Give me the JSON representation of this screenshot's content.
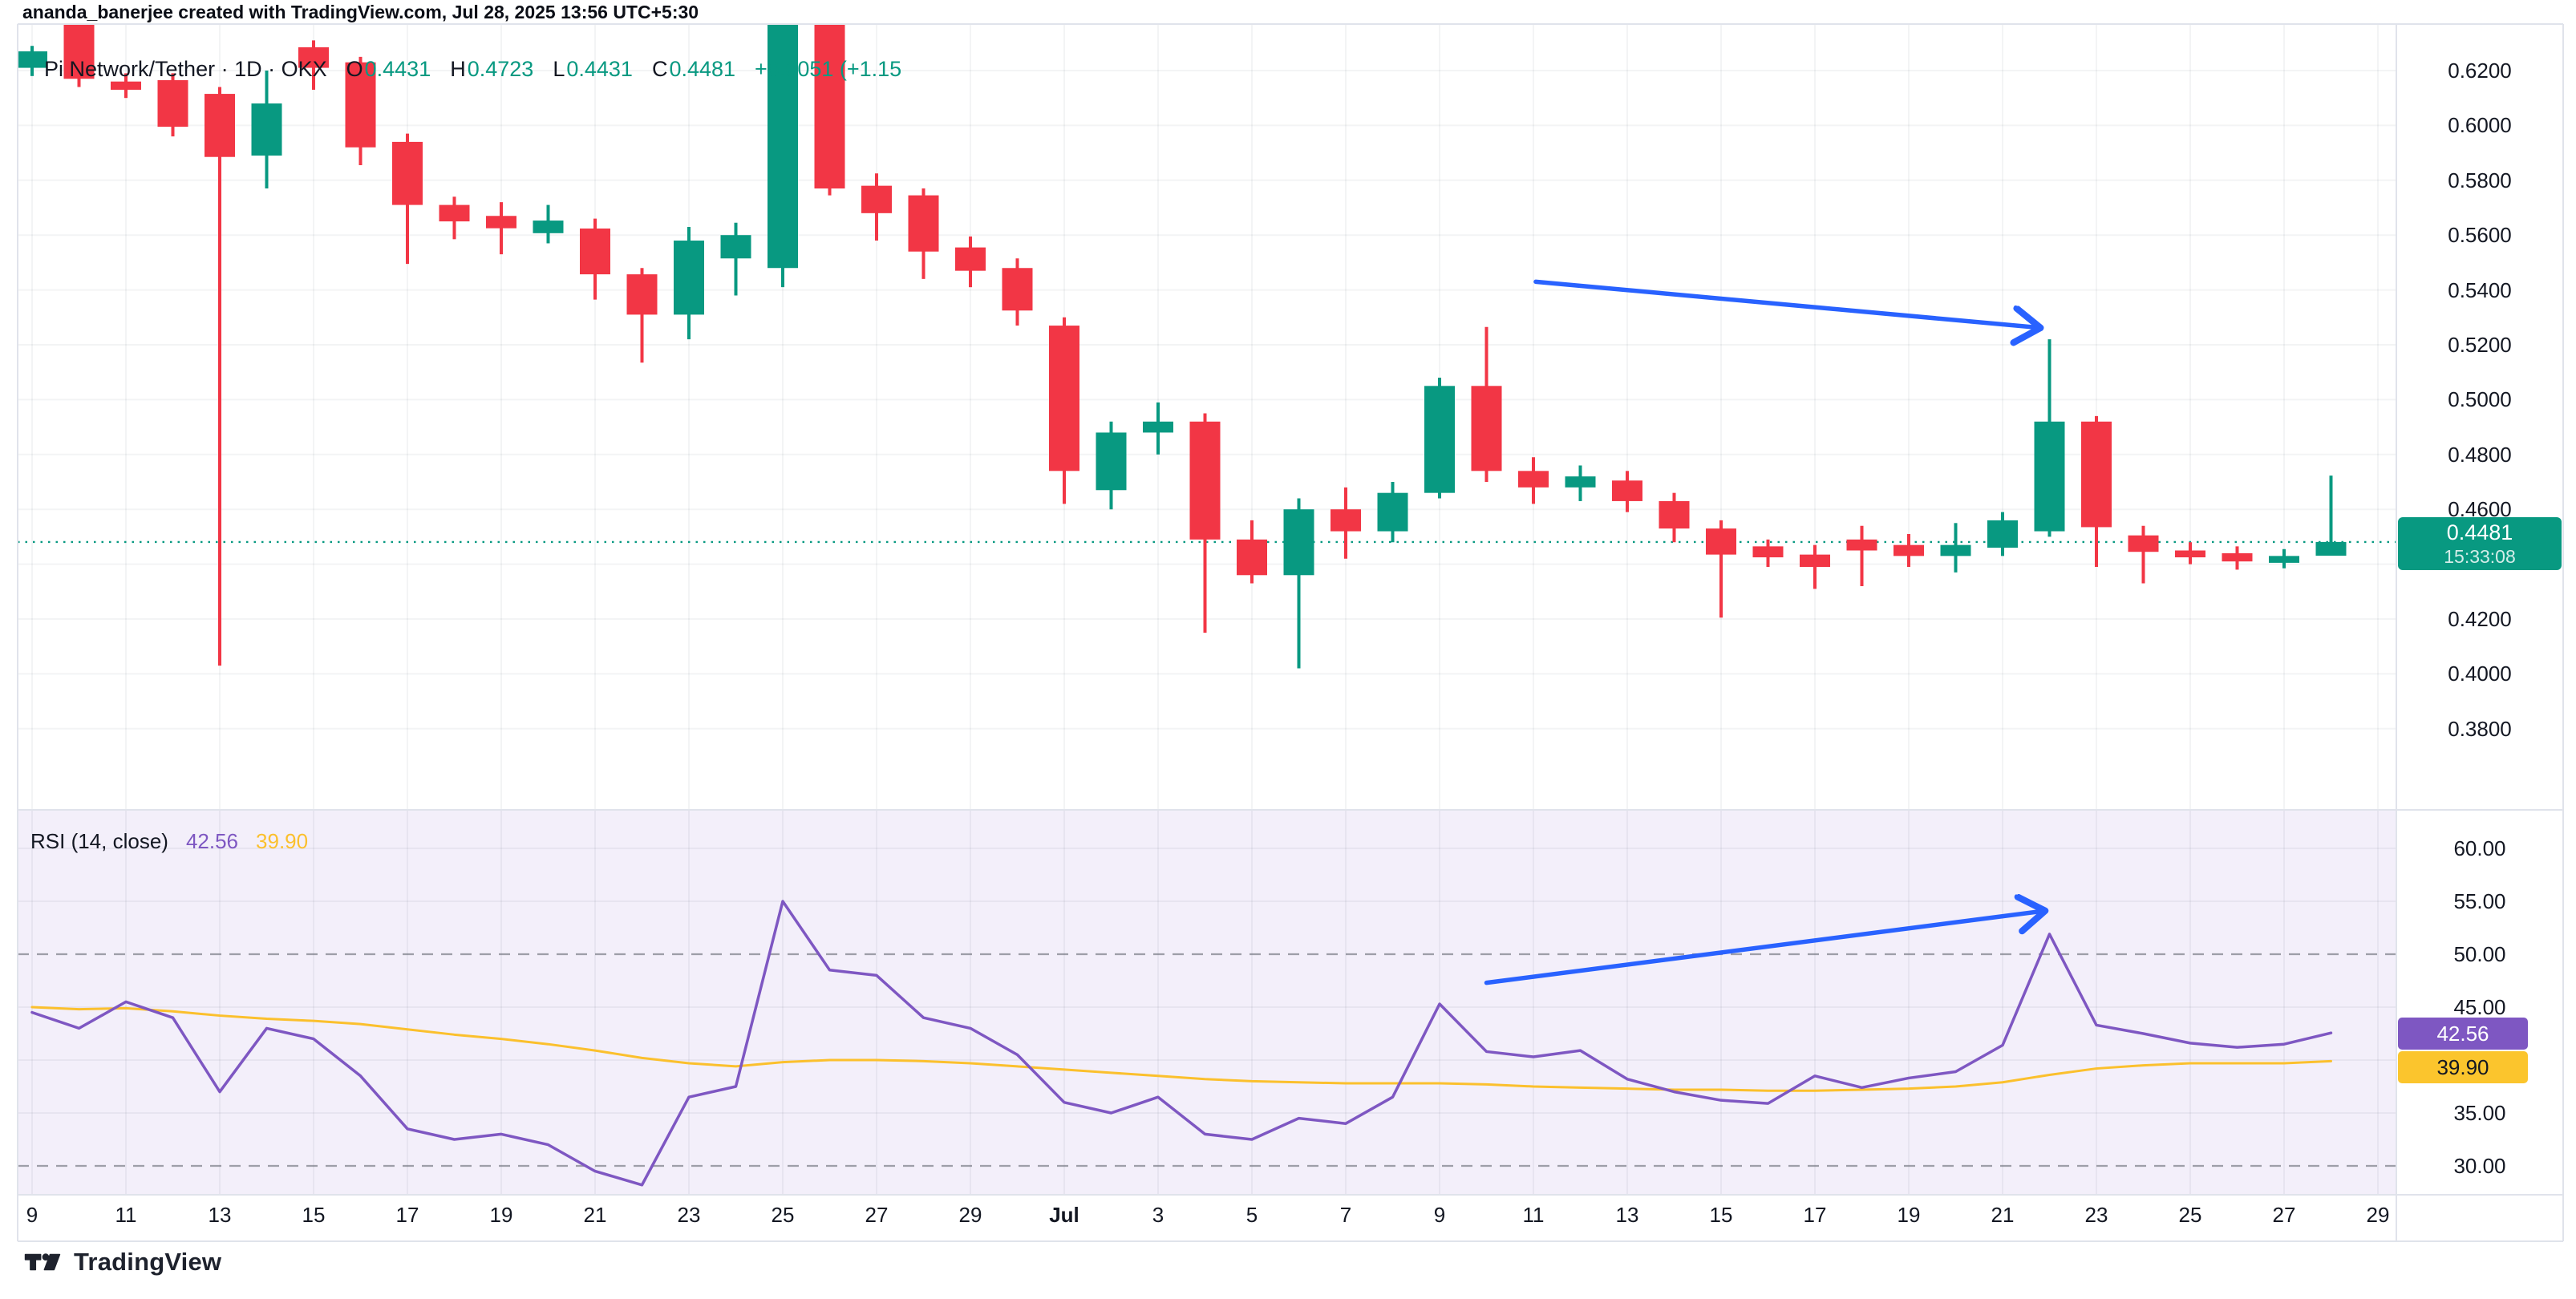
{
  "header": {
    "attribution": "ananda_banerjee created with TradingView.com, Jul 28, 2025 13:56 UTC+5:30"
  },
  "legend": {
    "title": "Pi Network/Tether · 1D · OKX",
    "ohlc": [
      {
        "label": "O",
        "value": "0.4431"
      },
      {
        "label": "H",
        "value": "0.4723"
      },
      {
        "label": "L",
        "value": "0.4431"
      },
      {
        "label": "C",
        "value": "0.4481"
      }
    ],
    "change": "+0.0051 (+1.15"
  },
  "rsi": {
    "title": "RSI (14, close)",
    "value": "42.56",
    "ma_value": "39.90",
    "scale_labels": [
      {
        "text": "60.00",
        "value": 60
      },
      {
        "text": "55.00",
        "value": 55
      },
      {
        "text": "50.00",
        "value": 50
      },
      {
        "text": "45.00",
        "value": 45
      },
      {
        "text": "35.00",
        "value": 35
      },
      {
        "text": "30.00",
        "value": 30
      }
    ]
  },
  "price_scale": {
    "current_price": "0.4481",
    "current_time": "15:33:08",
    "labels": [
      {
        "text": "0.6200",
        "value": 0.62
      },
      {
        "text": "0.6000",
        "value": 0.6
      },
      {
        "text": "0.5800",
        "value": 0.58
      },
      {
        "text": "0.5600",
        "value": 0.56
      },
      {
        "text": "0.5400",
        "value": 0.54
      },
      {
        "text": "0.5200",
        "value": 0.52
      },
      {
        "text": "0.5000",
        "value": 0.5
      },
      {
        "text": "0.4800",
        "value": 0.48
      },
      {
        "text": "0.4600",
        "value": 0.46
      },
      {
        "text": "0.4200",
        "value": 0.42
      },
      {
        "text": "0.4000",
        "value": 0.4
      },
      {
        "text": "0.3800",
        "value": 0.38
      }
    ]
  },
  "time_scale": {
    "ticks": [
      {
        "text": "9",
        "day": 0
      },
      {
        "text": "11",
        "day": 2
      },
      {
        "text": "13",
        "day": 4
      },
      {
        "text": "15",
        "day": 6
      },
      {
        "text": "17",
        "day": 8
      },
      {
        "text": "19",
        "day": 10
      },
      {
        "text": "21",
        "day": 12
      },
      {
        "text": "23",
        "day": 14
      },
      {
        "text": "25",
        "day": 16
      },
      {
        "text": "27",
        "day": 18
      },
      {
        "text": "29",
        "day": 20
      },
      {
        "text": "Jul",
        "day": 22,
        "bold": true
      },
      {
        "text": "3",
        "day": 24
      },
      {
        "text": "5",
        "day": 26
      },
      {
        "text": "7",
        "day": 28
      },
      {
        "text": "9",
        "day": 30
      },
      {
        "text": "11",
        "day": 32
      },
      {
        "text": "13",
        "day": 34
      },
      {
        "text": "15",
        "day": 36
      },
      {
        "text": "17",
        "day": 38
      },
      {
        "text": "19",
        "day": 40
      },
      {
        "text": "21",
        "day": 42
      },
      {
        "text": "23",
        "day": 44
      },
      {
        "text": "25",
        "day": 46
      },
      {
        "text": "27",
        "day": 48
      },
      {
        "text": "29",
        "day": 50
      }
    ]
  },
  "footer": {
    "brand": "TradingView"
  },
  "colors": {
    "up": "#089981",
    "down": "#F23645",
    "arrow": "#2962FF",
    "rsi_line": "#7E57C2",
    "rsi_ma": "#FBC02D",
    "grid": "rgba(28,37,60,0.05)",
    "band_dash": "rgba(110,114,125,0.65)",
    "separator": "#E0E3EB",
    "rsi_bg": "#F3EFFA",
    "last_price": "#089981"
  },
  "chart_data": {
    "type": "candlestick",
    "title": "Pi Network/Tether 1D OKX with RSI(14) sub-panel",
    "price_ylim": [
      0.38,
      0.638
    ],
    "rsi_ylim": [
      27.3,
      63.6
    ],
    "price_grid_levels": [
      0.62,
      0.6,
      0.58,
      0.56,
      0.54,
      0.52,
      0.5,
      0.48,
      0.46,
      0.44,
      0.42,
      0.4,
      0.38
    ],
    "rsi_grid_solid": [
      60,
      55,
      45,
      40,
      35
    ],
    "rsi_grid_dashed": [
      50,
      30
    ],
    "last_price": 0.4481,
    "candles": [
      {
        "d": "Jun 9",
        "o": 0.621,
        "h": 0.629,
        "l": 0.618,
        "c": 0.627
      },
      {
        "d": "Jun 10",
        "o": 0.648,
        "h": 0.65,
        "l": 0.614,
        "c": 0.617
      },
      {
        "d": "Jun 11",
        "o": 0.616,
        "h": 0.619,
        "l": 0.61,
        "c": 0.613
      },
      {
        "d": "Jun 12",
        "o": 0.6165,
        "h": 0.619,
        "l": 0.596,
        "c": 0.5995
      },
      {
        "d": "Jun 13",
        "o": 0.6115,
        "h": 0.614,
        "l": 0.403,
        "c": 0.5885
      },
      {
        "d": "Jun 14",
        "o": 0.589,
        "h": 0.62,
        "l": 0.577,
        "c": 0.608
      },
      {
        "d": "Jun 15",
        "o": 0.6285,
        "h": 0.631,
        "l": 0.613,
        "c": 0.621
      },
      {
        "d": "Jun 16",
        "o": 0.623,
        "h": 0.625,
        "l": 0.5855,
        "c": 0.592
      },
      {
        "d": "Jun 17",
        "o": 0.594,
        "h": 0.597,
        "l": 0.5495,
        "c": 0.571
      },
      {
        "d": "Jun 18",
        "o": 0.571,
        "h": 0.574,
        "l": 0.5585,
        "c": 0.565
      },
      {
        "d": "Jun 19",
        "o": 0.567,
        "h": 0.572,
        "l": 0.553,
        "c": 0.5625
      },
      {
        "d": "Jun 20",
        "o": 0.5607,
        "h": 0.571,
        "l": 0.557,
        "c": 0.5653
      },
      {
        "d": "Jun 21",
        "o": 0.5624,
        "h": 0.566,
        "l": 0.5365,
        "c": 0.5457
      },
      {
        "d": "Jun 22",
        "o": 0.5457,
        "h": 0.548,
        "l": 0.5135,
        "c": 0.531
      },
      {
        "d": "Jun 23",
        "o": 0.531,
        "h": 0.563,
        "l": 0.522,
        "c": 0.558
      },
      {
        "d": "Jun 24",
        "o": 0.5515,
        "h": 0.5645,
        "l": 0.538,
        "c": 0.56
      },
      {
        "d": "Jun 25",
        "o": 0.548,
        "h": 0.652,
        "l": 0.541,
        "c": 0.65
      },
      {
        "d": "Jun 26",
        "o": 0.655,
        "h": 0.657,
        "l": 0.5745,
        "c": 0.577
      },
      {
        "d": "Jun 27",
        "o": 0.578,
        "h": 0.5825,
        "l": 0.558,
        "c": 0.568
      },
      {
        "d": "Jun 28",
        "o": 0.5745,
        "h": 0.577,
        "l": 0.544,
        "c": 0.554
      },
      {
        "d": "Jun 29",
        "o": 0.5555,
        "h": 0.5595,
        "l": 0.541,
        "c": 0.547
      },
      {
        "d": "Jun 30",
        "o": 0.548,
        "h": 0.5515,
        "l": 0.527,
        "c": 0.5325
      },
      {
        "d": "Jul 1",
        "o": 0.527,
        "h": 0.53,
        "l": 0.462,
        "c": 0.474
      },
      {
        "d": "Jul 2",
        "o": 0.467,
        "h": 0.492,
        "l": 0.46,
        "c": 0.488
      },
      {
        "d": "Jul 3",
        "o": 0.488,
        "h": 0.499,
        "l": 0.48,
        "c": 0.492
      },
      {
        "d": "Jul 4",
        "o": 0.492,
        "h": 0.495,
        "l": 0.415,
        "c": 0.449
      },
      {
        "d": "Jul 5",
        "o": 0.449,
        "h": 0.456,
        "l": 0.433,
        "c": 0.436
      },
      {
        "d": "Jul 6",
        "o": 0.436,
        "h": 0.464,
        "l": 0.402,
        "c": 0.46
      },
      {
        "d": "Jul 7",
        "o": 0.46,
        "h": 0.468,
        "l": 0.442,
        "c": 0.452
      },
      {
        "d": "Jul 8",
        "o": 0.452,
        "h": 0.47,
        "l": 0.448,
        "c": 0.466
      },
      {
        "d": "Jul 9",
        "o": 0.466,
        "h": 0.508,
        "l": 0.464,
        "c": 0.505
      },
      {
        "d": "Jul 10",
        "o": 0.505,
        "h": 0.5265,
        "l": 0.47,
        "c": 0.474
      },
      {
        "d": "Jul 11",
        "o": 0.474,
        "h": 0.479,
        "l": 0.462,
        "c": 0.468
      },
      {
        "d": "Jul 12",
        "o": 0.468,
        "h": 0.476,
        "l": 0.463,
        "c": 0.472
      },
      {
        "d": "Jul 13",
        "o": 0.4705,
        "h": 0.474,
        "l": 0.459,
        "c": 0.463
      },
      {
        "d": "Jul 14",
        "o": 0.463,
        "h": 0.466,
        "l": 0.448,
        "c": 0.453
      },
      {
        "d": "Jul 15",
        "o": 0.453,
        "h": 0.456,
        "l": 0.4205,
        "c": 0.4435
      },
      {
        "d": "Jul 16",
        "o": 0.4465,
        "h": 0.449,
        "l": 0.439,
        "c": 0.4425
      },
      {
        "d": "Jul 17",
        "o": 0.4435,
        "h": 0.447,
        "l": 0.431,
        "c": 0.439
      },
      {
        "d": "Jul 18",
        "o": 0.449,
        "h": 0.454,
        "l": 0.432,
        "c": 0.445
      },
      {
        "d": "Jul 19",
        "o": 0.447,
        "h": 0.451,
        "l": 0.439,
        "c": 0.443
      },
      {
        "d": "Jul 20",
        "o": 0.443,
        "h": 0.455,
        "l": 0.437,
        "c": 0.447
      },
      {
        "d": "Jul 21",
        "o": 0.446,
        "h": 0.459,
        "l": 0.443,
        "c": 0.456
      },
      {
        "d": "Jul 22",
        "o": 0.452,
        "h": 0.522,
        "l": 0.45,
        "c": 0.492
      },
      {
        "d": "Jul 23",
        "o": 0.492,
        "h": 0.494,
        "l": 0.439,
        "c": 0.4535
      },
      {
        "d": "Jul 24",
        "o": 0.4505,
        "h": 0.454,
        "l": 0.433,
        "c": 0.4445
      },
      {
        "d": "Jul 25",
        "o": 0.445,
        "h": 0.448,
        "l": 0.44,
        "c": 0.4425
      },
      {
        "d": "Jul 26",
        "o": 0.444,
        "h": 0.4465,
        "l": 0.438,
        "c": 0.441
      },
      {
        "d": "Jul 27",
        "o": 0.4405,
        "h": 0.4455,
        "l": 0.4385,
        "c": 0.443
      },
      {
        "d": "Jul 28",
        "o": 0.4431,
        "h": 0.4723,
        "l": 0.4431,
        "c": 0.4481
      }
    ],
    "rsi_series": {
      "name": "RSI (14, close)",
      "values": [
        44.5,
        43.0,
        45.5,
        44.0,
        37.0,
        43.0,
        42.0,
        38.5,
        33.5,
        32.5,
        33.0,
        32.0,
        29.5,
        28.2,
        36.5,
        37.5,
        55.0,
        48.5,
        48.0,
        44.0,
        43.0,
        40.5,
        36.0,
        35.0,
        36.5,
        33.0,
        32.5,
        34.5,
        34.0,
        36.5,
        45.3,
        40.8,
        40.3,
        40.9,
        38.2,
        37.0,
        36.2,
        35.9,
        38.5,
        37.4,
        38.3,
        38.9,
        41.4,
        51.9,
        43.3,
        42.5,
        41.6,
        41.2,
        41.5,
        42.56
      ]
    },
    "rsi_ma_series": {
      "name": "RSI-based MA",
      "values": [
        45.0,
        44.8,
        44.9,
        44.6,
        44.2,
        43.9,
        43.7,
        43.4,
        42.9,
        42.4,
        42.0,
        41.5,
        40.9,
        40.2,
        39.7,
        39.4,
        39.8,
        40.0,
        40.0,
        39.9,
        39.7,
        39.4,
        39.1,
        38.8,
        38.5,
        38.2,
        38.0,
        37.9,
        37.8,
        37.8,
        37.8,
        37.7,
        37.5,
        37.4,
        37.3,
        37.2,
        37.2,
        37.1,
        37.1,
        37.2,
        37.3,
        37.5,
        37.9,
        38.6,
        39.2,
        39.5,
        39.7,
        39.7,
        39.7,
        39.9
      ]
    },
    "annotations": {
      "arrows": [
        {
          "pane": "price",
          "from": {
            "day": 32.05,
            "price": 0.543
          },
          "to": {
            "day": 42.8,
            "price": 0.5262
          }
        },
        {
          "pane": "rsi",
          "from": {
            "day": 31.0,
            "value": 47.3
          },
          "to": {
            "day": 42.9,
            "value": 54.1
          }
        }
      ]
    }
  }
}
